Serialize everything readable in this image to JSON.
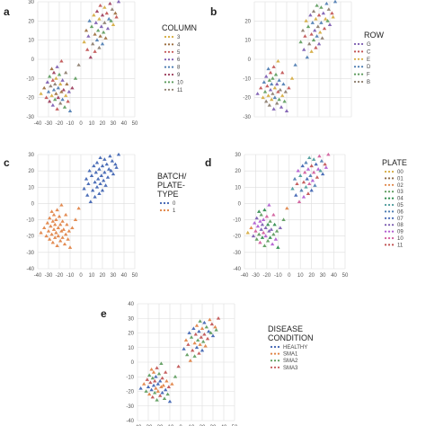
{
  "chart_data": [
    {
      "panel": "a",
      "type": "scatter",
      "legend_title": "COLUMN",
      "legend_placement": "right",
      "xlim": [
        -40,
        50
      ],
      "ylim": [
        -30,
        30
      ],
      "xticks": [
        "-40",
        "-30",
        "-20",
        "-10",
        "0",
        "10",
        "20",
        "30",
        "40",
        "50"
      ],
      "yticks": [
        "30",
        "20",
        "10",
        "0",
        "-10",
        "-20",
        "-30"
      ],
      "grid": true,
      "series": [
        {
          "name": "3",
          "color": "#d4aa3c"
        },
        {
          "name": "4",
          "color": "#9a6a3a"
        },
        {
          "name": "5",
          "color": "#c05050"
        },
        {
          "name": "6",
          "color": "#7a5ab0"
        },
        {
          "name": "8",
          "color": "#4a7ab0"
        },
        {
          "name": "9",
          "color": "#9a3a5a"
        },
        {
          "name": "10",
          "color": "#5a9a5a"
        },
        {
          "name": "11",
          "color": "#8a7a6a"
        }
      ]
    },
    {
      "panel": "b",
      "type": "scatter",
      "legend_title": "ROW",
      "legend_placement": "right",
      "xlim": [
        -40,
        50
      ],
      "ylim": [
        -30,
        30
      ],
      "xticks": [],
      "yticks": [
        "20",
        "10",
        "0",
        "-10",
        "-20",
        "-30"
      ],
      "grid": true,
      "series": [
        {
          "name": "G",
          "color": "#7a5ab0"
        },
        {
          "name": "C",
          "color": "#c05050"
        },
        {
          "name": "E",
          "color": "#d4aa3c"
        },
        {
          "name": "D",
          "color": "#4a7ab0"
        },
        {
          "name": "F",
          "color": "#5a9a5a"
        },
        {
          "name": "B",
          "color": "#8a7a6a"
        }
      ]
    },
    {
      "panel": "c",
      "type": "scatter",
      "legend_title": "BATCH/\nPLATE-\nTYPE",
      "legend_placement": "right",
      "xlim": [
        -40,
        50
      ],
      "ylim": [
        -40,
        30
      ],
      "xticks": [
        "-40",
        "-30",
        "-20",
        "-10",
        "0",
        "10",
        "20",
        "30",
        "40",
        "50"
      ],
      "yticks": [
        "30",
        "20",
        "10",
        "0",
        "-10",
        "-20",
        "-30",
        "-40"
      ],
      "grid": true,
      "series": [
        {
          "name": "0",
          "color": "#3a5fb0"
        },
        {
          "name": "1",
          "color": "#e08040"
        }
      ]
    },
    {
      "panel": "d",
      "type": "scatter",
      "legend_title": "PLATE",
      "legend_placement": "right",
      "xlim": [
        -40,
        50
      ],
      "ylim": [
        -40,
        30
      ],
      "xticks": [
        "-40",
        "-30",
        "-20",
        "-10",
        "0",
        "10",
        "20",
        "30",
        "40",
        "50"
      ],
      "yticks": [
        "30",
        "20",
        "10",
        "0",
        "-10",
        "-20",
        "-30",
        "-40"
      ],
      "grid": true,
      "series": [
        {
          "name": "00",
          "color": "#d4aa3c"
        },
        {
          "name": "01",
          "color": "#8a6a4a"
        },
        {
          "name": "02",
          "color": "#e08040"
        },
        {
          "name": "03",
          "color": "#5a9a5a"
        },
        {
          "name": "04",
          "color": "#2a8a4a"
        },
        {
          "name": "05",
          "color": "#4a9a9a"
        },
        {
          "name": "06",
          "color": "#4a7ab0"
        },
        {
          "name": "07",
          "color": "#3a5fb0"
        },
        {
          "name": "08",
          "color": "#7a5ab0"
        },
        {
          "name": "09",
          "color": "#b05ad0"
        },
        {
          "name": "10",
          "color": "#d05a9a"
        },
        {
          "name": "11",
          "color": "#c05050"
        }
      ]
    },
    {
      "panel": "e",
      "type": "scatter",
      "legend_title": "DISEASE\nCONDITION",
      "legend_placement": "right",
      "xlim": [
        -40,
        50
      ],
      "ylim": [
        -40,
        40
      ],
      "xticks": [
        "-40",
        "-30",
        "-20",
        "-10",
        "0",
        "10",
        "20",
        "30",
        "40",
        "50"
      ],
      "yticks": [
        "40",
        "30",
        "20",
        "10",
        "0",
        "-10",
        "-20",
        "-30",
        "-40"
      ],
      "grid": true,
      "series": [
        {
          "name": "HEALTHY",
          "color": "#3a5fb0"
        },
        {
          "name": "SMA1",
          "color": "#e08040"
        },
        {
          "name": "SMA2",
          "color": "#5a9a5a"
        },
        {
          "name": "SMA3",
          "color": "#c05050"
        }
      ]
    }
  ],
  "points": {
    "x": [
      -37,
      -34,
      -32,
      -31,
      -30,
      -29,
      -29,
      -28,
      -27,
      -27,
      -26,
      -26,
      -25,
      -25,
      -24,
      -24,
      -23,
      -23,
      -22,
      -22,
      -21,
      -21,
      -20,
      -19,
      -19,
      -18,
      -18,
      -17,
      -17,
      -16,
      -15,
      -14,
      -14,
      -13,
      -12,
      -11,
      -10,
      -8,
      -5,
      -2,
      3,
      5,
      6,
      7,
      8,
      9,
      10,
      11,
      12,
      13,
      13,
      14,
      15,
      15,
      16,
      17,
      17,
      18,
      18,
      19,
      20,
      20,
      21,
      22,
      22,
      23,
      24,
      25,
      26,
      27,
      28,
      29,
      30,
      32,
      33,
      35
    ],
    "y": [
      -18,
      -15,
      -20,
      -12,
      -17,
      -22,
      -9,
      -14,
      -19,
      -5,
      -11,
      -24,
      -16,
      -7,
      -21,
      -13,
      -10,
      -18,
      -26,
      -4,
      -15,
      -20,
      -8,
      -23,
      -13,
      -17,
      -1,
      -11,
      -21,
      -16,
      -25,
      -7,
      -19,
      -13,
      -22,
      -17,
      -27,
      -15,
      -10,
      -3,
      9,
      15,
      5,
      12,
      20,
      1,
      17,
      8,
      23,
      13,
      4,
      19,
      10,
      25,
      15,
      6,
      21,
      12,
      28,
      17,
      8,
      23,
      14,
      19,
      27,
      11,
      24,
      16,
      21,
      29,
      20,
      26,
      18,
      24,
      22,
      30
    ],
    "panel_a_color": [
      0,
      1,
      2,
      3,
      4,
      5,
      6,
      7,
      0,
      1,
      2,
      3,
      4,
      5,
      6,
      7,
      0,
      1,
      2,
      3,
      4,
      5,
      6,
      7,
      0,
      1,
      2,
      3,
      4,
      5,
      6,
      7,
      0,
      1,
      2,
      3,
      4,
      5,
      6,
      7,
      0,
      1,
      2,
      3,
      4,
      5,
      6,
      7,
      0,
      1,
      2,
      3,
      4,
      5,
      6,
      7,
      0,
      1,
      2,
      3,
      4,
      5,
      6,
      7,
      0,
      1,
      2,
      3,
      4,
      5,
      6,
      7,
      0,
      1,
      2,
      3
    ],
    "panel_b_color": [
      0,
      1,
      2,
      3,
      4,
      5,
      0,
      1,
      2,
      3,
      4,
      5,
      0,
      1,
      2,
      3,
      4,
      5,
      0,
      1,
      2,
      3,
      4,
      5,
      0,
      1,
      2,
      3,
      4,
      5,
      0,
      1,
      2,
      3,
      4,
      5,
      0,
      1,
      2,
      3,
      4,
      5,
      0,
      1,
      2,
      3,
      4,
      5,
      0,
      1,
      2,
      3,
      4,
      5,
      0,
      1,
      2,
      3,
      4,
      5,
      0,
      1,
      2,
      3,
      4,
      5,
      0,
      1,
      2,
      3,
      4,
      5,
      0,
      1,
      2,
      3
    ],
    "panel_d_color": [
      0,
      2,
      8,
      9,
      10,
      3,
      8,
      9,
      3,
      4,
      9,
      10,
      8,
      3,
      4,
      8,
      9,
      10,
      3,
      4,
      8,
      9,
      10,
      3,
      4,
      8,
      9,
      3,
      4,
      8,
      9,
      10,
      3,
      4,
      9,
      3,
      4,
      8,
      3,
      2,
      5,
      6,
      7,
      11,
      9,
      10,
      5,
      6,
      7,
      11,
      9,
      10,
      5,
      6,
      7,
      11,
      9,
      10,
      5,
      6,
      7,
      11,
      9,
      10,
      5,
      6,
      7,
      11,
      9,
      10,
      5,
      6,
      7,
      11,
      9,
      10
    ],
    "panel_e_color": [
      0,
      1,
      2,
      3,
      0,
      1,
      2,
      3,
      0,
      1,
      2,
      3,
      0,
      1,
      2,
      3,
      0,
      1,
      2,
      3,
      0,
      1,
      2,
      3,
      0,
      1,
      2,
      3,
      0,
      1,
      2,
      3,
      0,
      1,
      2,
      3,
      0,
      1,
      2,
      3,
      0,
      1,
      2,
      3,
      0,
      1,
      2,
      3,
      0,
      1,
      2,
      3,
      0,
      1,
      2,
      3,
      0,
      1,
      2,
      3,
      0,
      1,
      2,
      3,
      0,
      1,
      2,
      3,
      0,
      1,
      2,
      3,
      0,
      1,
      2,
      3
    ]
  }
}
